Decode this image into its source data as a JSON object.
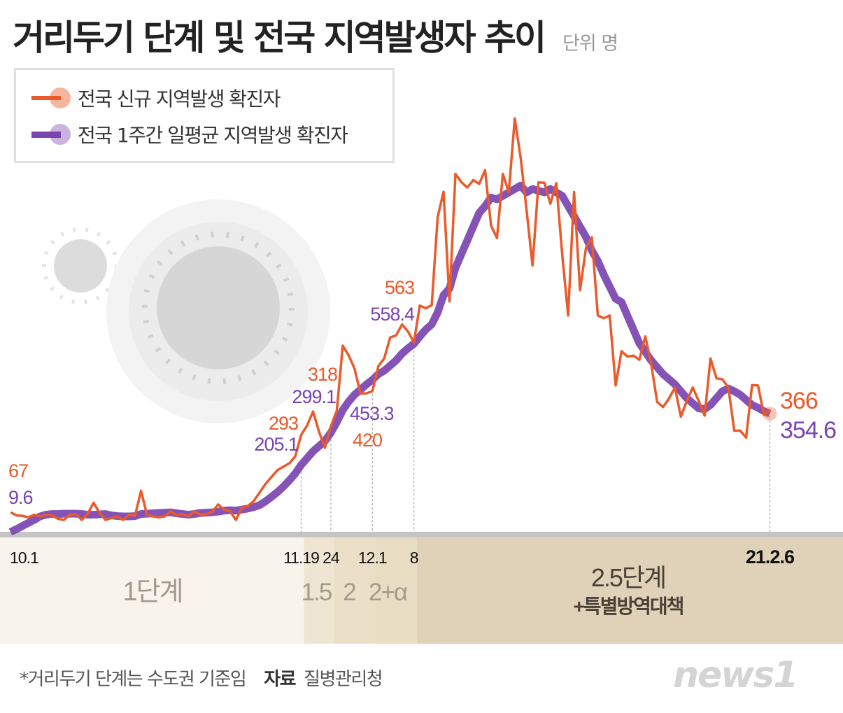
{
  "title": "거리두기 단계 및 전국 지역발생자 추이",
  "unit": "단위 명",
  "colors": {
    "daily": "#ea5a2a",
    "avg": "#7b44b0",
    "axis": "#c4c4c4",
    "stage1": "#f8f4ec",
    "stage15": "#efe5d3",
    "stage2": "#ebdfc7",
    "stage2a": "#e8dcc3",
    "stage25": "#e0d2b8"
  },
  "footer": {
    "note": "*거리두기 단계는 수도권 기준임",
    "source_label": "자료",
    "source": "질병관리청",
    "logo": "news1"
  },
  "chart_data": {
    "type": "line",
    "title": "거리두기 단계 및 전국 지역발생자 추이",
    "ylabel": "단위 명",
    "x_start": "2020-10-01",
    "x_end": "2021-02-06",
    "x_ticks": [
      {
        "date": "2020-10-01",
        "label": "10.1"
      },
      {
        "date": "2020-11-19",
        "label": "11.19"
      },
      {
        "date": "2020-11-24",
        "label": "24"
      },
      {
        "date": "2020-12-01",
        "label": "12.1"
      },
      {
        "date": "2020-12-08",
        "label": "8"
      },
      {
        "date": "2021-02-06",
        "label": "21.2.6"
      }
    ],
    "grid": false,
    "legend_position": "top-left",
    "series": [
      {
        "name": "전국 신규 지역발생 확진자",
        "color": "#ea5a2a",
        "values": [
          67,
          58,
          57,
          52,
          60,
          55,
          60,
          58,
          48,
          45,
          60,
          62,
          45,
          62,
          95,
          66,
          45,
          50,
          55,
          45,
          60,
          58,
          130,
          60,
          55,
          52,
          55,
          70,
          58,
          62,
          55,
          70,
          60,
          62,
          68,
          90,
          75,
          70,
          45,
          80,
          85,
          100,
          125,
          150,
          170,
          190,
          200,
          210,
          230,
          293,
          320,
          361,
          302,
          255,
          318,
          363,
          553,
          525,
          486,
          413,
          414,
          420,
          493,
          516,
          577,
          583,
          615,
          594,
          563,
          670,
          662,
          671,
          928,
          1002,
          682,
          1054,
          1030,
          1014,
          1036,
          1025,
          1065,
          903,
          867,
          1054,
          1000,
          1216,
          1100,
          946,
          787,
          1029,
          1028,
          967,
          1027,
          820,
          641,
          1001,
          715,
          838,
          869,
          641,
          633,
          641,
          437,
          537,
          521,
          524,
          512,
          580,
          500,
          389,
          374,
          399,
          431,
          346,
          392,
          431,
          392,
          349,
          516,
          458,
          455,
          431,
          305,
          305,
          285,
          438,
          437,
          351,
          366
        ]
      },
      {
        "name": "전국 1주간 일평균 지역발생 확진자",
        "color": "#7b44b0",
        "values": [
          9.6,
          18,
          27,
          36,
          45,
          55,
          60,
          62,
          62,
          63,
          63,
          63,
          62,
          60,
          60,
          61,
          62,
          58,
          56,
          55,
          55,
          56,
          62,
          63,
          64,
          65,
          66,
          67,
          64,
          62,
          60,
          62,
          65,
          66,
          67,
          69,
          72,
          73,
          72,
          75,
          78,
          82,
          88,
          99,
          112,
          126,
          142,
          160,
          180,
          205.1,
          225,
          245,
          260,
          275,
          299.1,
          330,
          365,
          390,
          410,
          425,
          440,
          453.3,
          470,
          480,
          495,
          510,
          530,
          545,
          558.4,
          580,
          600,
          615,
          650,
          700,
          720,
          780,
          820,
          860,
          900,
          940,
          960,
          985,
          980,
          990,
          1000,
          1010,
          1020,
          1000,
          1010,
          1005,
          1000,
          1010,
          1000,
          990,
          960,
          930,
          900,
          870,
          830,
          800,
          760,
          725,
          690,
          680,
          640,
          600,
          560,
          535,
          510,
          490,
          470,
          455,
          440,
          420,
          400,
          385,
          370,
          368,
          380,
          400,
          420,
          428,
          420,
          410,
          395,
          380,
          372,
          362,
          354.6
        ]
      }
    ],
    "annotations": [
      {
        "date": "2020-10-01",
        "daily": "67",
        "avg": "9.6"
      },
      {
        "date": "2020-11-19",
        "daily": "293",
        "avg": "205.1"
      },
      {
        "date": "2020-11-24",
        "daily": "318",
        "avg": "299.1"
      },
      {
        "date": "2020-12-01",
        "daily": "420",
        "avg": "453.3"
      },
      {
        "date": "2020-12-08",
        "daily": "563",
        "avg": "558.4"
      },
      {
        "date": "2021-02-06",
        "daily": "366",
        "avg": "354.6"
      }
    ],
    "stages": [
      {
        "label": "1단계",
        "from": "2020-10-01",
        "to": "2020-11-19"
      },
      {
        "label": "1.5",
        "from": "2020-11-19",
        "to": "2020-11-24"
      },
      {
        "label": "2",
        "from": "2020-11-24",
        "to": "2020-12-01"
      },
      {
        "label": "2+α",
        "from": "2020-12-01",
        "to": "2020-12-08"
      },
      {
        "label": "2.5단계",
        "sublabel": "+특별방역대책",
        "from": "2020-12-08",
        "to": "2021-02-06"
      }
    ]
  }
}
